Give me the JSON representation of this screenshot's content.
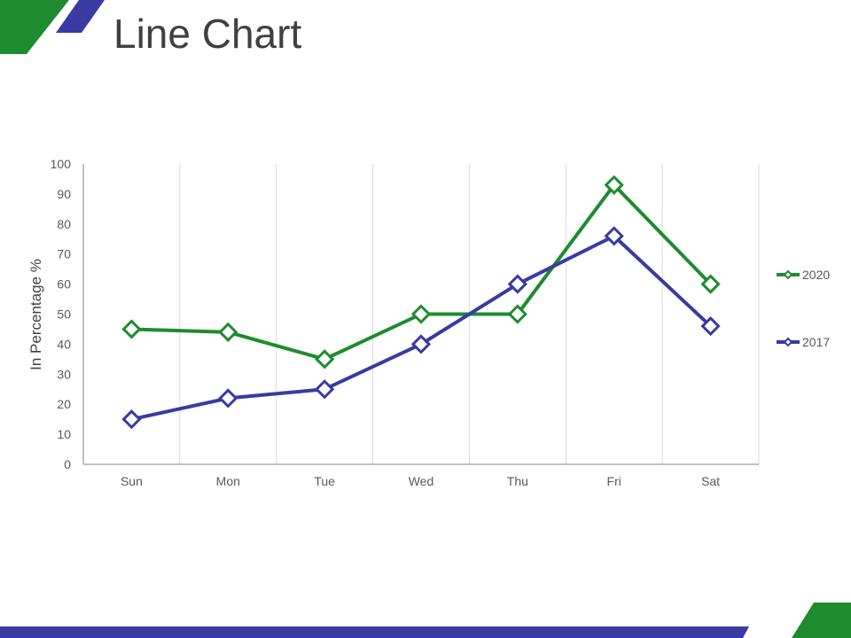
{
  "slide": {
    "title": "Line Chart"
  },
  "colors": {
    "green": "#1e8c2e",
    "blue": "#3a3aa3",
    "grid": "#d9d9d9",
    "axis": "#808080",
    "text": "#404040",
    "tick_text": "#595959"
  },
  "chart_data": {
    "type": "line",
    "title": "",
    "xlabel": "",
    "ylabel": "In Percentage %",
    "categories": [
      "Sun",
      "Mon",
      "Tue",
      "Wed",
      "Thu",
      "Fri",
      "Sat"
    ],
    "ylim": [
      0,
      100
    ],
    "yticks": [
      0,
      10,
      20,
      30,
      40,
      50,
      60,
      70,
      80,
      90,
      100
    ],
    "grid": "vertical",
    "legend_position": "right",
    "marker": "diamond",
    "series": [
      {
        "name": "2020",
        "color": "#1e8c2e",
        "values": [
          45,
          44,
          35,
          50,
          50,
          93,
          60
        ]
      },
      {
        "name": "2017",
        "color": "#3a3aa3",
        "values": [
          15,
          22,
          25,
          40,
          60,
          76,
          46
        ]
      }
    ]
  }
}
